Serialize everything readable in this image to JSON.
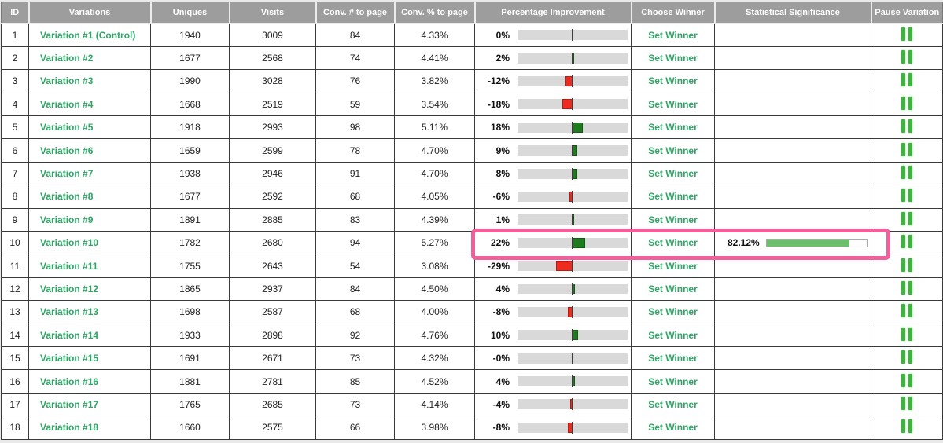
{
  "colors": {
    "header_bg": "#9d9d9d",
    "link_green": "#2fa566",
    "bar_green": "#1e7c1e",
    "bar_red": "#ee2b20",
    "sig_fill_green": "#6dbf6d",
    "pause_green": "#3fb23f",
    "highlight_pink": "#f2609b",
    "track_gray": "#d9d9d9"
  },
  "table": {
    "columns": [
      {
        "key": "id",
        "label": "ID"
      },
      {
        "key": "variations",
        "label": "Variations"
      },
      {
        "key": "uniques",
        "label": "Uniques"
      },
      {
        "key": "visits",
        "label": "Visits"
      },
      {
        "key": "conv-num",
        "label": "Conv. # to page"
      },
      {
        "key": "conv-pct",
        "label": "Conv. % to page"
      },
      {
        "key": "improvement",
        "label": "Percentage Improvement"
      },
      {
        "key": "choose-winner",
        "label": "Choose Winner"
      },
      {
        "key": "significance",
        "label": "Statistical Significance"
      },
      {
        "key": "pause",
        "label": "Pause Variation"
      }
    ],
    "set_winner_label": "Set Winner",
    "rows": [
      {
        "id": "1",
        "variation": "Variation #1 (Control)",
        "uniques": "1940",
        "visits": "3009",
        "conv_num": "84",
        "conv_pct": "4.33%",
        "improvement": {
          "label": "0%",
          "value": 0
        },
        "choose_winner": "Set Winner",
        "significance": null,
        "highlighted": false
      },
      {
        "id": "2",
        "variation": "Variation #2",
        "uniques": "1677",
        "visits": "2568",
        "conv_num": "74",
        "conv_pct": "4.41%",
        "improvement": {
          "label": "2%",
          "value": 2
        },
        "choose_winner": "Set Winner",
        "significance": null,
        "highlighted": false
      },
      {
        "id": "3",
        "variation": "Variation #3",
        "uniques": "1990",
        "visits": "3028",
        "conv_num": "76",
        "conv_pct": "3.82%",
        "improvement": {
          "label": "-12%",
          "value": -12
        },
        "choose_winner": "Set Winner",
        "significance": null,
        "highlighted": false
      },
      {
        "id": "4",
        "variation": "Variation #4",
        "uniques": "1668",
        "visits": "2519",
        "conv_num": "59",
        "conv_pct": "3.54%",
        "improvement": {
          "label": "-18%",
          "value": -18
        },
        "choose_winner": "Set Winner",
        "significance": null,
        "highlighted": false
      },
      {
        "id": "5",
        "variation": "Variation #5",
        "uniques": "1918",
        "visits": "2993",
        "conv_num": "98",
        "conv_pct": "5.11%",
        "improvement": {
          "label": "18%",
          "value": 18
        },
        "choose_winner": "Set Winner",
        "significance": null,
        "highlighted": false
      },
      {
        "id": "6",
        "variation": "Variation #6",
        "uniques": "1659",
        "visits": "2599",
        "conv_num": "78",
        "conv_pct": "4.70%",
        "improvement": {
          "label": "9%",
          "value": 9
        },
        "choose_winner": "Set Winner",
        "significance": null,
        "highlighted": false
      },
      {
        "id": "7",
        "variation": "Variation #7",
        "uniques": "1938",
        "visits": "2946",
        "conv_num": "91",
        "conv_pct": "4.70%",
        "improvement": {
          "label": "8%",
          "value": 8
        },
        "choose_winner": "Set Winner",
        "significance": null,
        "highlighted": false
      },
      {
        "id": "8",
        "variation": "Variation #8",
        "uniques": "1677",
        "visits": "2592",
        "conv_num": "68",
        "conv_pct": "4.05%",
        "improvement": {
          "label": "-6%",
          "value": -6
        },
        "choose_winner": "Set Winner",
        "significance": null,
        "highlighted": false
      },
      {
        "id": "9",
        "variation": "Variation #9",
        "uniques": "1891",
        "visits": "2885",
        "conv_num": "83",
        "conv_pct": "4.39%",
        "improvement": {
          "label": "1%",
          "value": 1
        },
        "choose_winner": "Set Winner",
        "significance": null,
        "highlighted": false
      },
      {
        "id": "10",
        "variation": "Variation #10",
        "uniques": "1782",
        "visits": "2680",
        "conv_num": "94",
        "conv_pct": "5.27%",
        "improvement": {
          "label": "22%",
          "value": 22
        },
        "choose_winner": "Set Winner",
        "significance": {
          "label": "82.12%",
          "value": 82.12
        },
        "highlighted": true
      },
      {
        "id": "11",
        "variation": "Variation #11",
        "uniques": "1755",
        "visits": "2643",
        "conv_num": "54",
        "conv_pct": "3.08%",
        "improvement": {
          "label": "-29%",
          "value": -29
        },
        "choose_winner": "Set Winner",
        "significance": null,
        "highlighted": false
      },
      {
        "id": "12",
        "variation": "Variation #12",
        "uniques": "1865",
        "visits": "2937",
        "conv_num": "84",
        "conv_pct": "4.50%",
        "improvement": {
          "label": "4%",
          "value": 4
        },
        "choose_winner": "Set Winner",
        "significance": null,
        "highlighted": false
      },
      {
        "id": "13",
        "variation": "Variation #13",
        "uniques": "1698",
        "visits": "2587",
        "conv_num": "68",
        "conv_pct": "4.00%",
        "improvement": {
          "label": "-8%",
          "value": -8
        },
        "choose_winner": "Set Winner",
        "significance": null,
        "highlighted": false
      },
      {
        "id": "14",
        "variation": "Variation #14",
        "uniques": "1933",
        "visits": "2898",
        "conv_num": "92",
        "conv_pct": "4.76%",
        "improvement": {
          "label": "10%",
          "value": 10
        },
        "choose_winner": "Set Winner",
        "significance": null,
        "highlighted": false
      },
      {
        "id": "15",
        "variation": "Variation #15",
        "uniques": "1691",
        "visits": "2671",
        "conv_num": "73",
        "conv_pct": "4.32%",
        "improvement": {
          "label": "-0%",
          "value": 0
        },
        "choose_winner": "Set Winner",
        "significance": null,
        "highlighted": false
      },
      {
        "id": "16",
        "variation": "Variation #16",
        "uniques": "1881",
        "visits": "2781",
        "conv_num": "85",
        "conv_pct": "4.52%",
        "improvement": {
          "label": "4%",
          "value": 4
        },
        "choose_winner": "Set Winner",
        "significance": null,
        "highlighted": false
      },
      {
        "id": "17",
        "variation": "Variation #17",
        "uniques": "1765",
        "visits": "2685",
        "conv_num": "73",
        "conv_pct": "4.14%",
        "improvement": {
          "label": "-4%",
          "value": -4
        },
        "choose_winner": "Set Winner",
        "significance": null,
        "highlighted": false
      },
      {
        "id": "18",
        "variation": "Variation #18",
        "uniques": "1660",
        "visits": "2575",
        "conv_num": "66",
        "conv_pct": "3.98%",
        "improvement": {
          "label": "-8%",
          "value": -8
        },
        "choose_winner": "Set Winner",
        "significance": null,
        "highlighted": false
      }
    ]
  }
}
